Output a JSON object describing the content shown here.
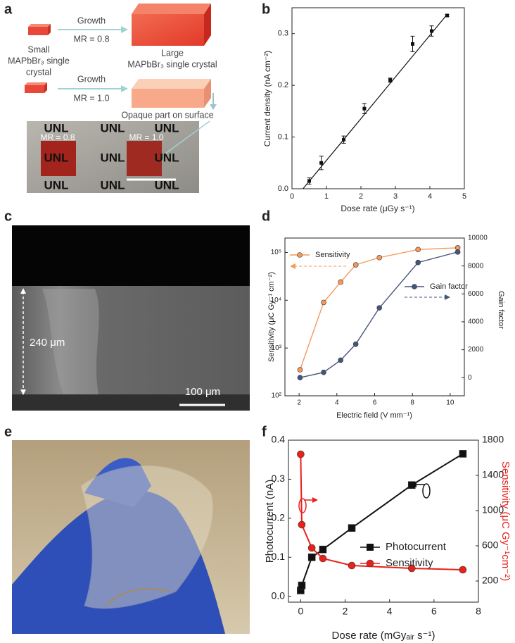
{
  "panel_labels": [
    "a",
    "b",
    "c",
    "d",
    "e",
    "f"
  ],
  "panel_a": {
    "row1": {
      "arrow_top": "Growth",
      "arrow_bottom": "MR = 0.8",
      "small_label": [
        "Small",
        "MAPbBr₃ single",
        "crystal"
      ],
      "large_label": [
        "Large",
        "MAPbBr₃ single crystal"
      ]
    },
    "row2": {
      "arrow_top": "Growth",
      "arrow_bottom": "MR = 1.0",
      "note": "Opaque part on surface"
    },
    "photo": {
      "labels": [
        "UNL",
        "UNL",
        "UNL",
        "UNL",
        "UNL",
        "UNL",
        "UNL",
        "UNL",
        "UNL"
      ],
      "left_label": "MR = 0.8",
      "right_label": "MR = 1.0"
    }
  },
  "panel_c": {
    "thickness": "240 μm",
    "scale_bar": "100 μm"
  },
  "chart_data": [
    {
      "type": "scatter",
      "x_label": "Dose rate (μGy s⁻¹)",
      "y_label": "Current density (nA cm⁻²)",
      "x": [
        0.5,
        0.85,
        1.5,
        2.1,
        2.85,
        3.5,
        4.05,
        4.5
      ],
      "values": [
        0.015,
        0.05,
        0.095,
        0.155,
        0.21,
        0.28,
        0.305,
        0.335
      ],
      "errors": [
        0.006,
        0.013,
        0.007,
        0.01,
        0.004,
        0.015,
        0.01,
        0.002
      ],
      "fit": {
        "x": [
          0.32,
          4.5
        ],
        "values": [
          0,
          0.337
        ]
      },
      "color": "#111111",
      "xlim": [
        0,
        5
      ],
      "xticks": [
        0,
        1,
        2,
        3,
        4,
        5
      ],
      "ylim": [
        0,
        0.35
      ],
      "yticks": [
        {
          "value": 0,
          "label": "0.0"
        },
        0.1,
        0.2,
        0.3
      ]
    },
    {
      "type": "line",
      "x_label": "Electric field (V mm⁻¹)",
      "y_label": "Sensitivity (μC Gy⁻¹ cm⁻²)",
      "y2_label": "Gain factor",
      "x": [
        2.05,
        3.3,
        4.2,
        5.0,
        6.25,
        8.3,
        10.4
      ],
      "series": [
        {
          "name": "Sensitivity",
          "color": "#f39a5c",
          "marker": "circle",
          "values": [
            350,
            9000,
            24000,
            55000,
            78000,
            115000,
            125000
          ]
        },
        {
          "name": "Gain factor",
          "color": "#46557a",
          "marker": "circle",
          "axis": "y2",
          "values": [
            0,
            380,
            1250,
            2400,
            5000,
            8250,
            9000
          ]
        }
      ],
      "log_y": true,
      "xlim": [
        1.25,
        10.75
      ],
      "xticks": [
        2,
        4,
        6,
        8,
        10
      ],
      "ylim": [
        100,
        200000
      ],
      "yticks": [
        {
          "value": 100,
          "label": "10²"
        },
        {
          "value": 1000,
          "label": "10³"
        },
        {
          "value": 10000,
          "label": "10⁴"
        },
        {
          "value": 100000,
          "label": "10⁵"
        }
      ],
      "y2lim": [
        -1300,
        10000
      ],
      "y2ticks": [
        0,
        2000,
        4000,
        6000,
        8000,
        10000
      ]
    },
    {
      "type": "line",
      "x_label": "Dose rate (mGyₐᵢᵣ s⁻¹)",
      "y_label": "Photocurrent (nA)",
      "y2_label": "Sensitivity (μC Gy⁻¹cm⁻²)",
      "y2_label_color": "#e8211b",
      "x": [
        0,
        0.05,
        0.5,
        1,
        2.3,
        5,
        7.3
      ],
      "series": [
        {
          "name": "Photocurrent",
          "color": "#111111",
          "marker": "square",
          "values": [
            0.015,
            0.028,
            0.1,
            0.12,
            0.175,
            0.285,
            0.365
          ]
        },
        {
          "name": "Sensitivity",
          "color": "#e8211b",
          "marker": "circle",
          "axis": "y2",
          "values": [
            1640,
            840,
            576,
            456,
            376,
            344,
            328
          ]
        }
      ],
      "xlim": [
        -0.55,
        8
      ],
      "xticks": [
        0,
        2,
        4,
        6,
        8
      ],
      "ylim": [
        -0.015,
        0.4
      ],
      "yticks": [
        {
          "value": 0,
          "label": "0.0"
        },
        0.1,
        0.2,
        0.3,
        0.4
      ],
      "y2lim": [
        -40,
        1800
      ],
      "y2ticks": [
        200,
        600,
        1000,
        1400,
        1800
      ]
    }
  ]
}
